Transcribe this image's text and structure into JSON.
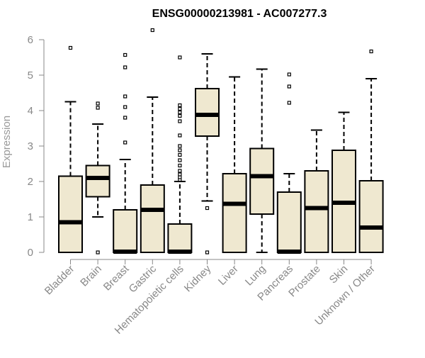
{
  "chart_data": {
    "type": "boxplot",
    "title": "ENSG00000213981 - AC007277.3",
    "ylabel": "Expression",
    "xlabel": "",
    "ylim": [
      0,
      6
    ],
    "yticks": [
      0,
      1,
      2,
      3,
      4,
      5,
      6
    ],
    "grid": false,
    "legend": "none",
    "colors": {
      "box_fill": "#efe8d0",
      "stroke": "#000000",
      "axis_text": "#888888",
      "title": "#000000"
    },
    "categories": [
      "Bladder",
      "Brain",
      "Breast",
      "Gastric",
      "Hematopoietic cells",
      "Kidney",
      "Liver",
      "Lung",
      "Pancreas",
      "Prostate",
      "Skin",
      "Unknown / Other"
    ],
    "boxes": [
      {
        "whisker_low": 0,
        "q1": 0,
        "median": 0.85,
        "q3": 2.15,
        "whisker_high": 4.25,
        "outliers": [
          5.77
        ]
      },
      {
        "whisker_low": 1.0,
        "q1": 1.57,
        "median": 2.1,
        "q3": 2.45,
        "whisker_high": 3.62,
        "outliers": [
          4.08,
          4.2,
          0.0
        ]
      },
      {
        "whisker_low": 0,
        "q1": 0,
        "median": 0.02,
        "q3": 1.2,
        "whisker_high": 2.62,
        "outliers": [
          3.1,
          3.8,
          4.1,
          4.4,
          5.22,
          5.57
        ]
      },
      {
        "whisker_low": 0,
        "q1": 0,
        "median": 1.2,
        "q3": 1.9,
        "whisker_high": 4.38,
        "outliers": [
          6.27
        ]
      },
      {
        "whisker_low": 0,
        "q1": 0,
        "median": 0.02,
        "q3": 0.8,
        "whisker_high": 2.0,
        "outliers": [
          2.05,
          2.12,
          2.2,
          2.3,
          2.45,
          2.6,
          2.75,
          2.88,
          3.0,
          3.3,
          3.7,
          3.85,
          3.95,
          4.05,
          4.15,
          5.5
        ]
      },
      {
        "whisker_low": 1.45,
        "q1": 3.28,
        "median": 3.88,
        "q3": 4.62,
        "whisker_high": 5.6,
        "outliers": [
          1.25,
          0.0
        ]
      },
      {
        "whisker_low": 0,
        "q1": 0,
        "median": 1.37,
        "q3": 2.22,
        "whisker_high": 4.95,
        "outliers": []
      },
      {
        "whisker_low": 0,
        "q1": 1.08,
        "median": 2.15,
        "q3": 2.93,
        "whisker_high": 5.17,
        "outliers": []
      },
      {
        "whisker_low": 0,
        "q1": 0,
        "median": 0.02,
        "q3": 1.7,
        "whisker_high": 2.22,
        "outliers": [
          4.22,
          4.68,
          5.02
        ]
      },
      {
        "whisker_low": 0,
        "q1": 0,
        "median": 1.25,
        "q3": 2.3,
        "whisker_high": 3.45,
        "outliers": []
      },
      {
        "whisker_low": 0,
        "q1": 0,
        "median": 1.4,
        "q3": 2.88,
        "whisker_high": 3.95,
        "outliers": []
      },
      {
        "whisker_low": 0,
        "q1": 0,
        "median": 0.7,
        "q3": 2.02,
        "whisker_high": 4.9,
        "outliers": [
          5.67
        ]
      }
    ]
  }
}
